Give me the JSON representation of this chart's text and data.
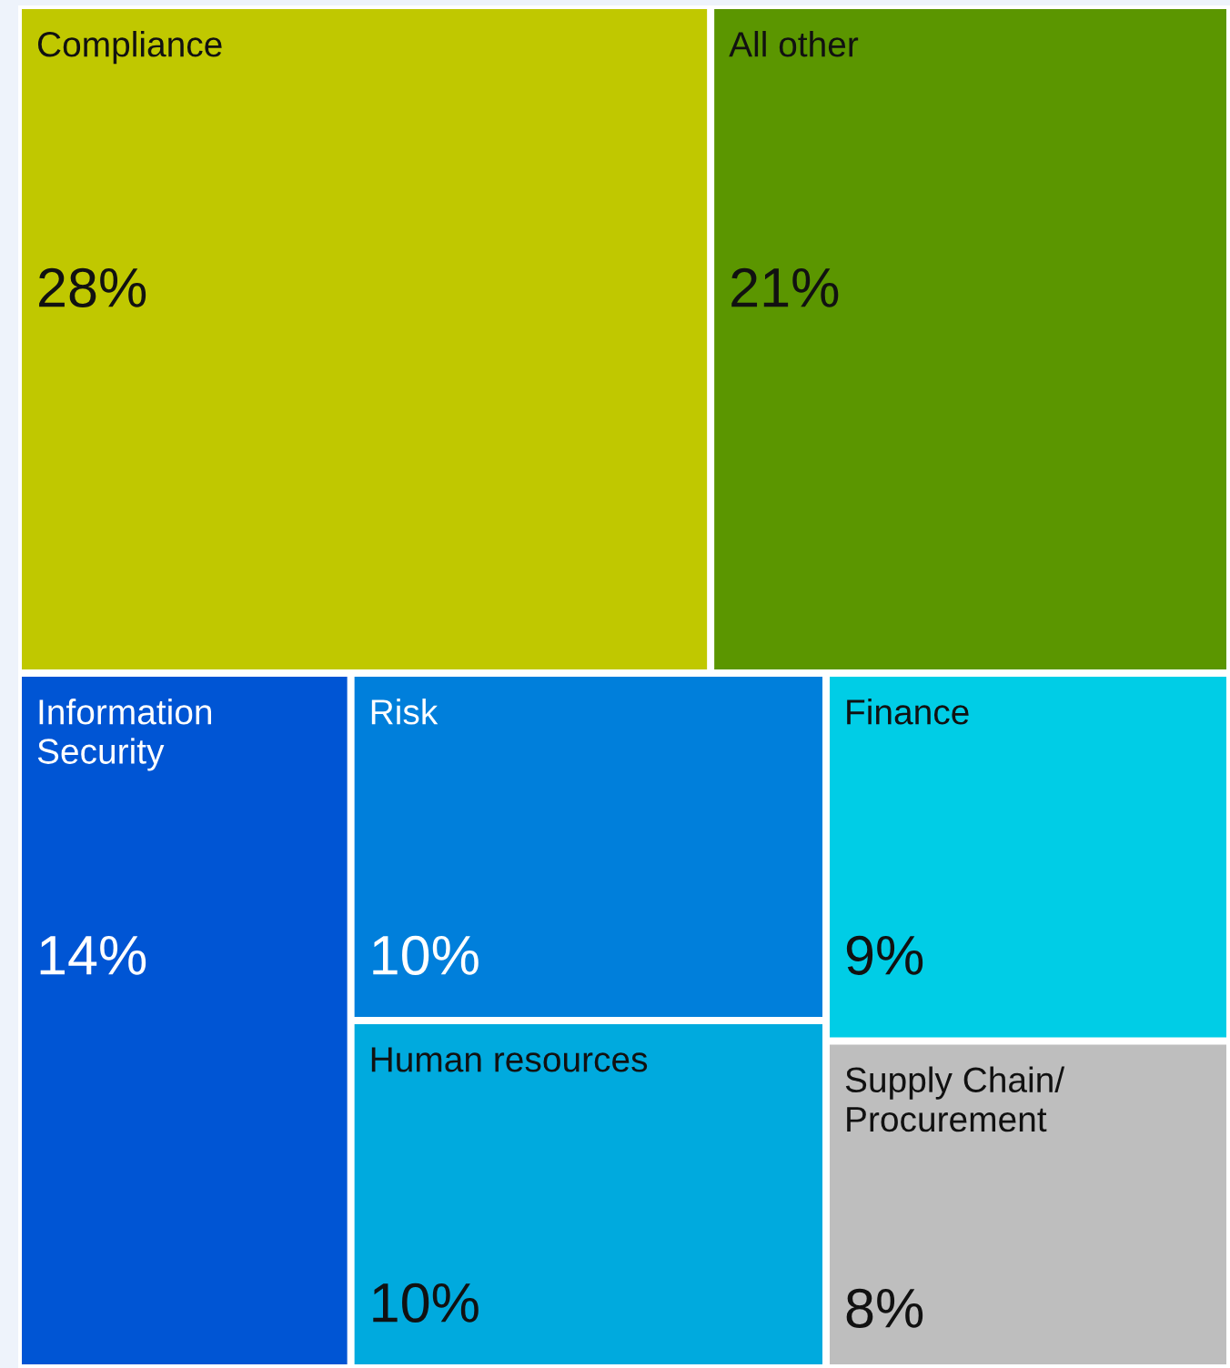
{
  "chart_data": {
    "type": "other",
    "categories": [
      "Compliance",
      "All other",
      "Information\nSecurity",
      "Risk",
      "Human resources",
      "Finance",
      "Supply Chain/\nProcurement"
    ],
    "values": [
      28,
      21,
      14,
      10,
      10,
      9,
      8
    ],
    "colors": [
      "#c0c800",
      "#5b9600",
      "#0055d4",
      "#007fdb",
      "#00aade",
      "#00cde6",
      "#bebebe"
    ],
    "value_labels": [
      "28%",
      "21%",
      "14%",
      "10%",
      "10%",
      "9%",
      "8%"
    ]
  }
}
